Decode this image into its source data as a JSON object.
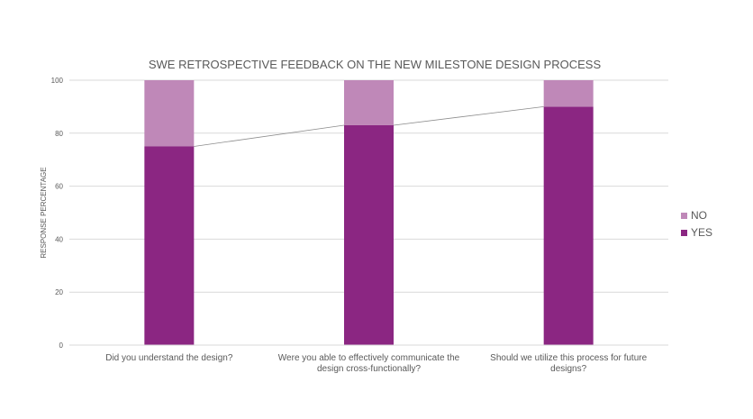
{
  "chart_data": {
    "type": "bar",
    "stacked": true,
    "title": "SWE RETROSPECTIVE FEEDBACK ON THE NEW MILESTONE DESIGN PROCESS",
    "xlabel": "",
    "ylabel": "RESPONSE PERCENTAGE",
    "ylim": [
      0,
      100
    ],
    "yticks": [
      "0",
      "20",
      "40",
      "60",
      "80",
      "100"
    ],
    "categories": [
      [
        "Did you understand the design?"
      ],
      [
        "Were you able to effectively communicate the",
        "design cross-functionally?"
      ],
      [
        "Should we utilize this process for future",
        "designs?"
      ]
    ],
    "series": [
      {
        "name": "YES",
        "color": "#8b2682",
        "values": [
          75,
          83,
          90
        ]
      },
      {
        "name": "NO",
        "color": "#bf88b8",
        "values": [
          25,
          17,
          10
        ]
      }
    ],
    "series_lines": true,
    "grid": true,
    "legend": "right",
    "legend_order": [
      "NO",
      "YES"
    ]
  }
}
